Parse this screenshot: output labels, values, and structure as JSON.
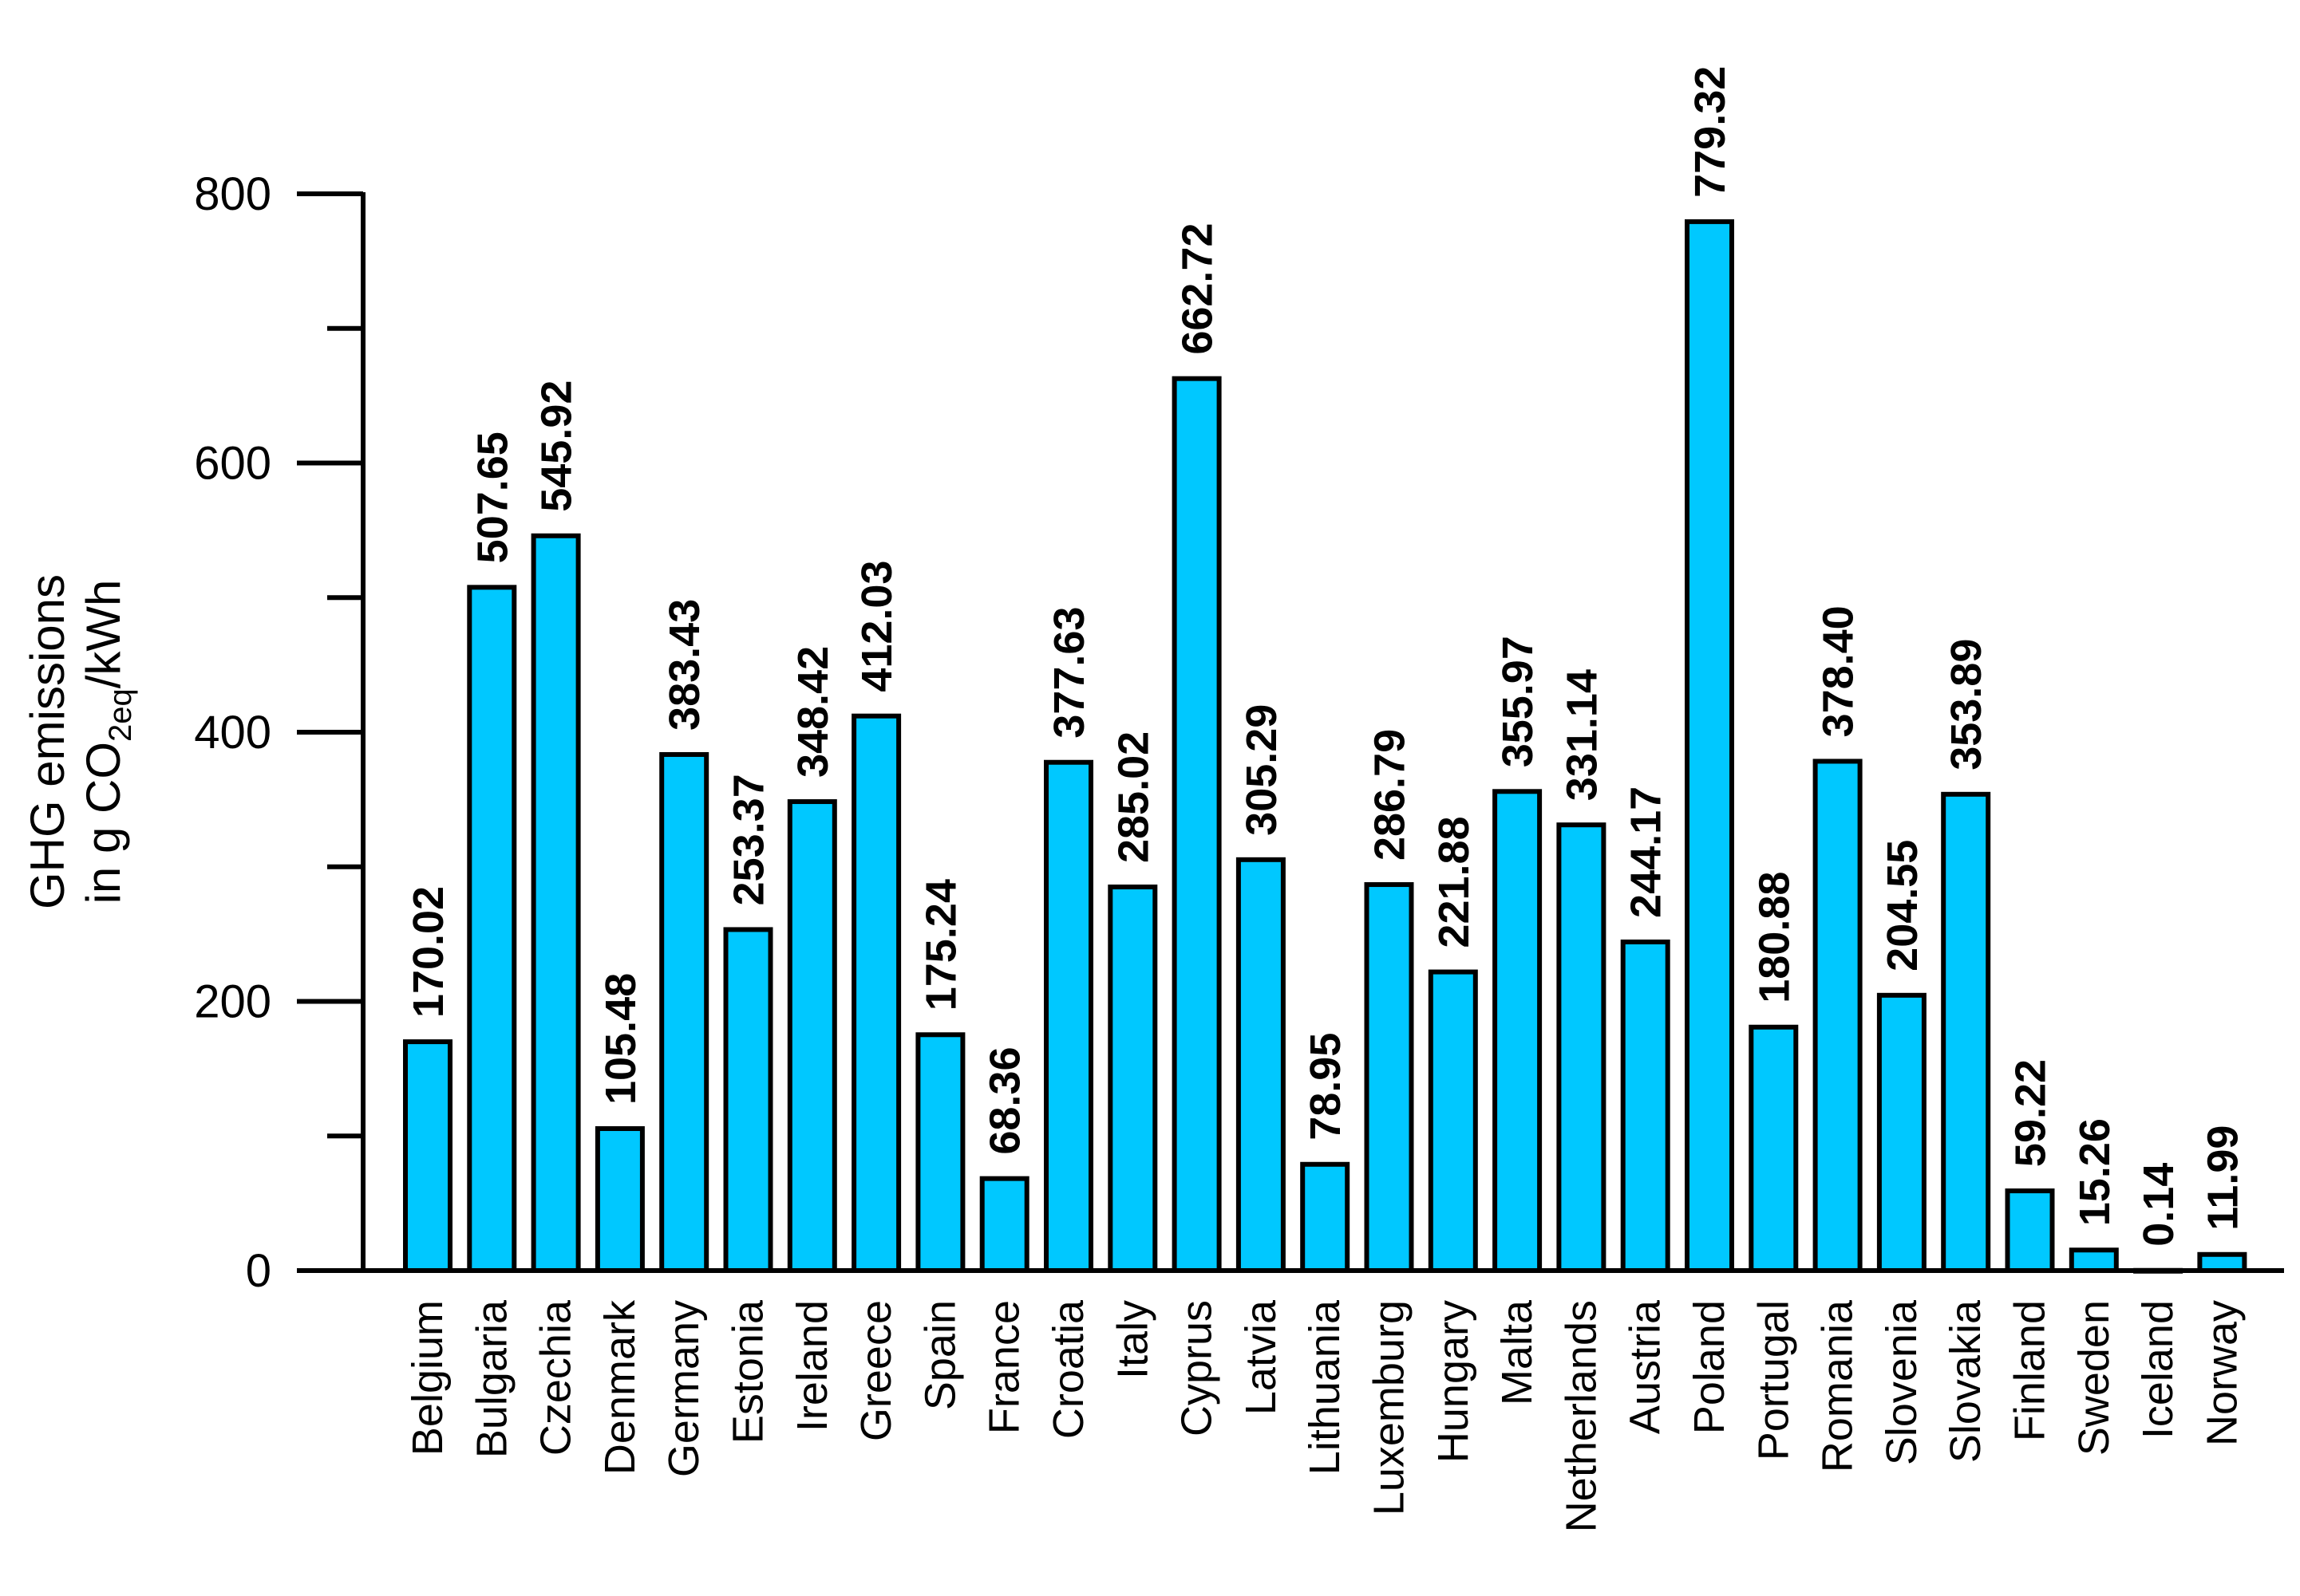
{
  "chart_data": {
    "type": "bar",
    "title": "",
    "xlabel": "",
    "ylabel_line1": "GHG emissions",
    "ylabel_line2_prefix": "in g CO",
    "ylabel_line2_sub": "2eq",
    "ylabel_line2_suffix": "/kWh",
    "ylim": [
      0,
      800
    ],
    "yticks": [
      0,
      200,
      400,
      600,
      800
    ],
    "yticks_minor": [
      100,
      300,
      500,
      700
    ],
    "grid": false,
    "bar_color": "#00c8ff",
    "categories": [
      "Belgium",
      "Bulgaria",
      "Czechia",
      "Denmark",
      "Germany",
      "Estonia",
      "Ireland",
      "Greece",
      "Spain",
      "France",
      "Croatia",
      "Italy",
      "Cyprus",
      "Latvia",
      "Lithuania",
      "Luxemburg",
      "Hungary",
      "Malta",
      "Netherlands",
      "Austria",
      "Poland",
      "Portugal",
      "Romania",
      "Slovenia",
      "Slovakia",
      "Finland",
      "Sweden",
      "Iceland",
      "Norway"
    ],
    "values": [
      170.02,
      507.65,
      545.92,
      105.48,
      383.43,
      253.37,
      348.42,
      412.03,
      175.24,
      68.36,
      377.63,
      285.02,
      662.72,
      305.29,
      78.95,
      286.79,
      221.88,
      355.97,
      331.14,
      244.17,
      779.32,
      180.88,
      378.4,
      204.55,
      353.89,
      59.22,
      15.26,
      0.14,
      11.99
    ],
    "value_labels": [
      "170.02",
      "507.65",
      "545.92",
      "105.48",
      "383.43",
      "253.37",
      "348.42",
      "412.03",
      "175.24",
      "68.36",
      "377.63",
      "285.02",
      "662.72",
      "305.29",
      "78.95",
      "286.79",
      "221.88",
      "355.97",
      "331.14",
      "244.17",
      "779.32",
      "180.88",
      "378.40",
      "204.55",
      "353.89",
      "59.22",
      "15.26",
      "0.14",
      "11.99"
    ]
  }
}
